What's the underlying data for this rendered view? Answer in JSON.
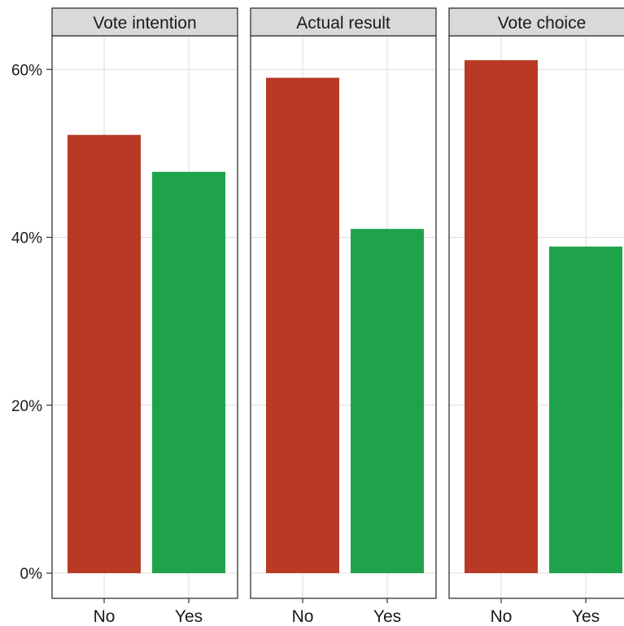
{
  "chart_data": {
    "type": "bar",
    "facet_panels": [
      "Vote intention",
      "Actual result",
      "Vote choice"
    ],
    "categories": [
      "No",
      "Yes"
    ],
    "panels": [
      {
        "title": "Vote intention",
        "values": [
          52.2,
          47.8
        ]
      },
      {
        "title": "Actual result",
        "values": [
          59.0,
          41.0
        ]
      },
      {
        "title": "Vote choice",
        "values": [
          61.1,
          38.9
        ]
      }
    ],
    "y_ticks": [
      "0%",
      "20%",
      "40%",
      "60%"
    ],
    "y_tick_values": [
      0,
      20,
      40,
      60
    ],
    "ylim": [
      -3,
      64
    ],
    "xlabel": "",
    "ylabel": "",
    "grid": true,
    "legend": "none",
    "colors": {
      "No": "#b83a24",
      "Yes": "#1fa34a",
      "strip_fill": "#d9d9d9",
      "grid": "#dcdcdc",
      "border": "#333333"
    }
  }
}
